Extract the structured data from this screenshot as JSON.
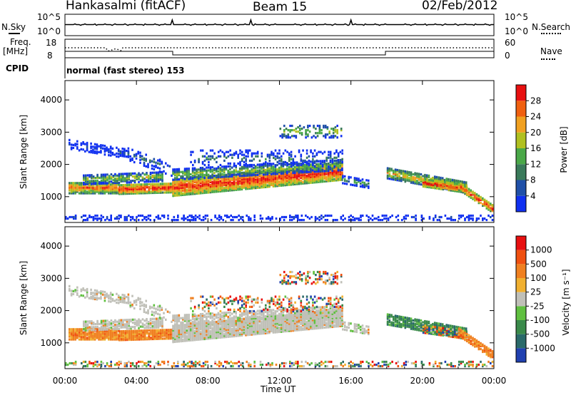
{
  "header": {
    "station": "Hankasalmi (fitACF)",
    "beam": "Beam 15",
    "date": "02/Feb/2012"
  },
  "noise_panel": {
    "left_label": "N.Sky",
    "right_label": "N.Search",
    "tick_top": "10^5",
    "tick_bottom": "10^0"
  },
  "freq_panel": {
    "left_label_line1": "Freq.",
    "left_label_line2": "[MHz]",
    "left_tick_top": "18",
    "left_tick_bottom": "8",
    "right_label": "Nave",
    "right_tick_top": "60",
    "right_tick_bottom": "0"
  },
  "cpid": {
    "label": "CPID",
    "value": "normal (fast stereo) 153"
  },
  "axes": {
    "ylabel": "Slant Range [km]",
    "xlabel": "Time UT",
    "yticks": [
      "1000",
      "2000",
      "3000",
      "4000"
    ],
    "xticks": [
      "00:00",
      "04:00",
      "08:00",
      "12:00",
      "16:00",
      "20:00",
      "00:00"
    ]
  },
  "chart_data": [
    {
      "type": "heatmap",
      "title": "",
      "xlabel": "Time UT",
      "ylabel": "Slant Range [km]",
      "xlim": [
        0,
        24
      ],
      "ylim": [
        200,
        4600
      ],
      "colorbar": {
        "label": "Power [dB]",
        "ticks": [
          "4",
          "8",
          "12",
          "16",
          "20",
          "24",
          "28"
        ],
        "colors": [
          "#1030f0",
          "#2050a8",
          "#3a7a5a",
          "#4aa848",
          "#b0c020",
          "#f0a020",
          "#f06010",
          "#e81010"
        ]
      }
    },
    {
      "type": "heatmap",
      "title": "",
      "xlabel": "Time UT",
      "ylabel": "Slant Range [km]",
      "xlim": [
        0,
        24
      ],
      "ylim": [
        200,
        4600
      ],
      "colorbar": {
        "label": "Velocity [m s⁻¹]",
        "ticks": [
          "1000",
          "500",
          "100",
          "25",
          "-25",
          "-100",
          "-500",
          "-1000"
        ],
        "colors": [
          "#2040b0",
          "#2a6a6a",
          "#3a8a4a",
          "#60c040",
          "#c0c0b8",
          "#f0b030",
          "#f08020",
          "#f05010",
          "#e81010"
        ]
      }
    }
  ]
}
